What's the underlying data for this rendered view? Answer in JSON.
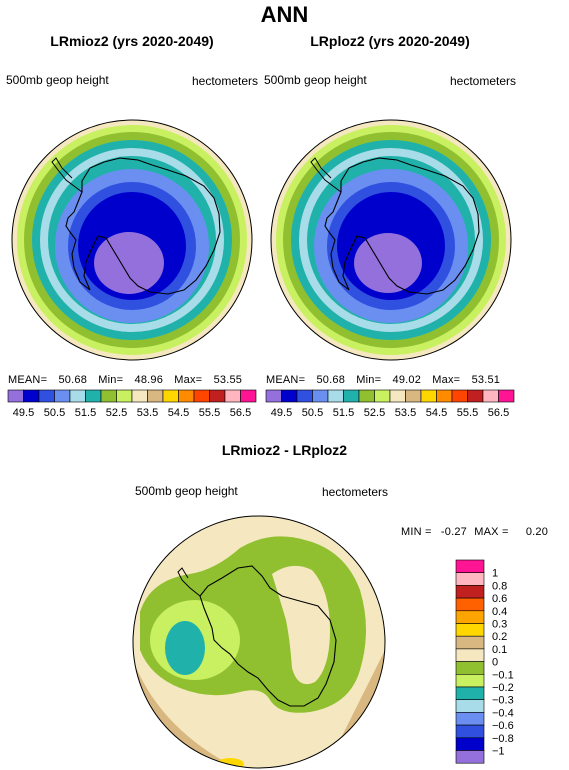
{
  "page": {
    "title": "ANN"
  },
  "panels": [
    {
      "title": "LRmioz2 (yrs 2020-2049)",
      "left_label": "500mb geop height",
      "right_label": "hectometers",
      "stats": {
        "mean_label": "MEAN=",
        "mean": "50.68",
        "min_label": "Min=",
        "min": "48.96",
        "max_label": "Max=",
        "max": "53.55"
      }
    },
    {
      "title": "LRploz2 (yrs 2020-2049)",
      "left_label": "500mb geop height",
      "right_label": "hectometers",
      "stats": {
        "mean_label": "MEAN=",
        "mean": "50.68",
        "min_label": "Min=",
        "min": "49.02",
        "max_label": "Max=",
        "max": "53.51"
      }
    }
  ],
  "diff": {
    "title": "LRmioz2 - LRploz2",
    "left_label": "500mb geop height",
    "right_label": "hectometers",
    "stats": {
      "min_label": "MIN =",
      "min": "-0.27",
      "max_label": "MAX =",
      "max": "0.20"
    }
  },
  "colors": {
    "abs_scale": [
      "#9370db",
      "#0000cd",
      "#3050e0",
      "#6a8ff0",
      "#a8dce8",
      "#20b2aa",
      "#90c030",
      "#c8f060",
      "#f5e8c0",
      "#d8b880",
      "#ffd700",
      "#ff8c00",
      "#ff4500",
      "#c02020",
      "#ffb6c1",
      "#ff1493"
    ],
    "diff_scale": [
      "#9370db",
      "#0000cd",
      "#3050e0",
      "#6a8ff0",
      "#a8dce8",
      "#20b2aa",
      "#c8f060",
      "#90c030",
      "#f5e8c0",
      "#d8b880",
      "#ffd700",
      "#ffa500",
      "#ff6000",
      "#c02020",
      "#ffb6c1",
      "#ff1493"
    ],
    "land_outline": "#000000"
  },
  "chart_data": [
    {
      "type": "heatmap",
      "title": "LRmioz2 (yrs 2020-2049)",
      "variable": "500mb geop height",
      "units": "hectometers",
      "mean": 50.68,
      "min": 48.96,
      "max": 53.55,
      "levels": [
        49.5,
        50,
        50.5,
        51,
        51.5,
        52,
        52.5,
        53,
        53.5,
        54,
        54.5,
        55,
        55.5,
        56,
        56.5
      ],
      "colorbar_tick_labels": [
        "49.5",
        "50.5",
        "51.5",
        "52.5",
        "53.5",
        "54.5",
        "55.5",
        "56.5"
      ]
    },
    {
      "type": "heatmap",
      "title": "LRploz2 (yrs 2020-2049)",
      "variable": "500mb geop height",
      "units": "hectometers",
      "mean": 50.68,
      "min": 49.02,
      "max": 53.51,
      "levels": [
        49.5,
        50,
        50.5,
        51,
        51.5,
        52,
        52.5,
        53,
        53.5,
        54,
        54.5,
        55,
        55.5,
        56,
        56.5
      ],
      "colorbar_tick_labels": [
        "49.5",
        "50.5",
        "51.5",
        "52.5",
        "53.5",
        "54.5",
        "55.5",
        "56.5"
      ]
    },
    {
      "type": "heatmap",
      "title": "LRmioz2 - LRploz2",
      "variable": "500mb geop height",
      "units": "hectometers",
      "min": -0.27,
      "max": 0.2,
      "levels": [
        -1,
        -0.8,
        -0.6,
        -0.4,
        -0.3,
        -0.2,
        -0.1,
        0,
        0.1,
        0.2,
        0.3,
        0.4,
        0.6,
        0.8,
        1
      ],
      "colorbar_tick_labels": [
        "1",
        "0.8",
        "0.6",
        "0.4",
        "0.3",
        "0.2",
        "0.1",
        "0",
        "−0.1",
        "−0.2",
        "−0.3",
        "−0.4",
        "−0.6",
        "−0.8",
        "−1"
      ]
    }
  ]
}
